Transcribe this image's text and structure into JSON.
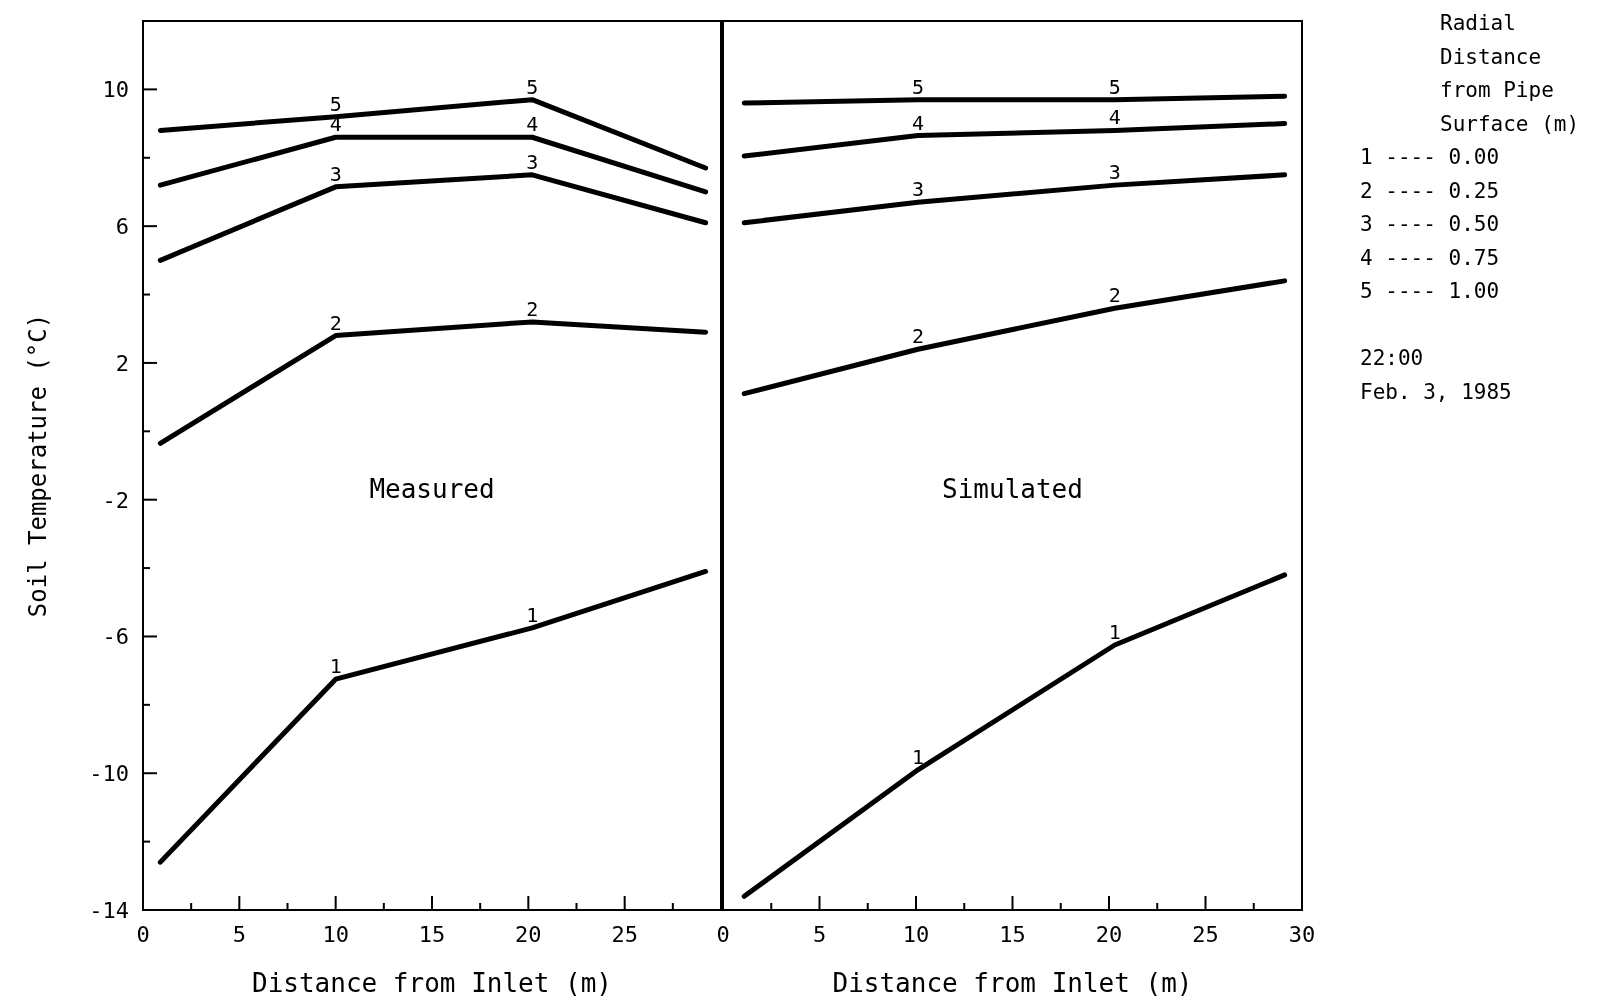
{
  "chart_data": [
    {
      "type": "line",
      "xlabel": "Distance from Inlet (m)",
      "ylabel": "Soil Temperature (°C)",
      "xlim": [
        0,
        30
      ],
      "ylim": [
        -14,
        12
      ],
      "xticks": [
        0,
        {
          "value": 2.5,
          "label": null
        },
        5,
        {
          "value": 7.5,
          "label": null
        },
        10,
        {
          "value": 12.5,
          "label": null
        },
        15,
        {
          "value": 17.5,
          "label": null
        },
        20,
        {
          "value": 22.5,
          "label": null
        },
        25,
        {
          "value": 27.5,
          "label": null
        }
      ],
      "yticks": [
        -14,
        {
          "value": -12,
          "label": null
        },
        -10,
        {
          "value": -8,
          "label": null
        },
        -6,
        {
          "value": -4,
          "label": null
        },
        -2,
        {
          "value": 0,
          "label": null
        },
        2,
        {
          "value": 4,
          "label": null
        },
        6,
        {
          "value": 8,
          "label": null
        },
        10
      ],
      "x": [
        0.9,
        10,
        20.2,
        29.2
      ],
      "series": [
        {
          "name": "1",
          "color": "#000000",
          "values": [
            -12.6,
            -7.25,
            -5.75,
            -4.1
          ]
        },
        {
          "name": "2",
          "color": "#000000",
          "values": [
            -0.35,
            2.8,
            3.2,
            2.9
          ]
        },
        {
          "name": "3",
          "color": "#000000",
          "values": [
            5.0,
            7.15,
            7.5,
            6.1
          ]
        },
        {
          "name": "4",
          "color": "#000000",
          "values": [
            7.2,
            8.6,
            8.6,
            7.0
          ]
        },
        {
          "name": "5",
          "color": "#000000",
          "values": [
            8.8,
            9.2,
            9.7,
            7.7
          ]
        }
      ],
      "annotations": [
        "Measured"
      ]
    },
    {
      "type": "line",
      "xlabel": "Distance from Inlet (m)",
      "xlim": [
        0,
        30
      ],
      "ylim": [
        -14,
        12
      ],
      "tick_labels": "x",
      "xticks": [
        0,
        {
          "value": 2.5,
          "label": null
        },
        5,
        {
          "value": 7.5,
          "label": null
        },
        10,
        {
          "value": 12.5,
          "label": null
        },
        15,
        {
          "value": 17.5,
          "label": null
        },
        20,
        {
          "value": 22.5,
          "label": null
        },
        25,
        {
          "value": 27.5,
          "label": null
        },
        30
      ],
      "x": [
        1.1,
        10.1,
        20.3,
        29.1
      ],
      "series": [
        {
          "name": "1",
          "color": "#000000",
          "values": [
            -13.6,
            -9.9,
            -6.25,
            -4.2
          ]
        },
        {
          "name": "2",
          "color": "#000000",
          "values": [
            1.1,
            2.4,
            3.6,
            4.4
          ]
        },
        {
          "name": "3",
          "color": "#000000",
          "values": [
            6.1,
            6.7,
            7.2,
            7.5
          ]
        },
        {
          "name": "4",
          "color": "#000000",
          "values": [
            8.05,
            8.65,
            8.8,
            9.0
          ]
        },
        {
          "name": "5",
          "color": "#000000",
          "values": [
            9.6,
            9.7,
            9.7,
            9.8
          ]
        }
      ],
      "annotations": [
        "Simulated",
        "Radial Distance from Pipe Surface (m)",
        "1 ---- 0.00",
        "2 ---- 0.25",
        "3 ---- 0.50",
        "4 ---- 0.75",
        "5 ---- 1.00",
        "22:00",
        "Feb. 3, 1985"
      ]
    }
  ]
}
